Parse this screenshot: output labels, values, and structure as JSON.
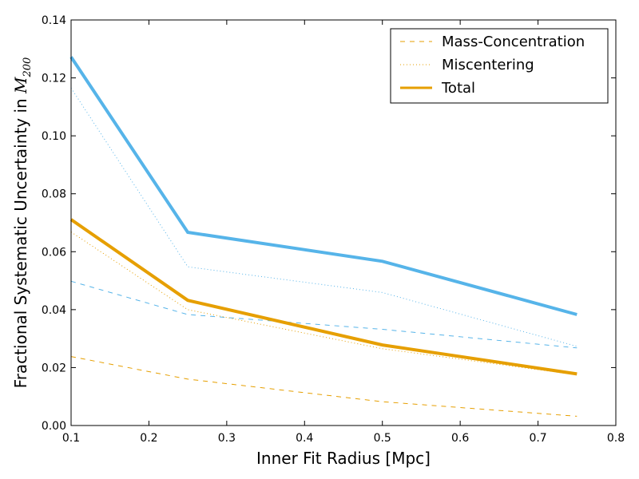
{
  "chart_data": {
    "type": "line",
    "title": "",
    "xlabel": "Inner Fit Radius [Mpc]",
    "ylabel_main": "Fractional Systematic Uncertainty in ",
    "ylabel_math": "M",
    "ylabel_sub": "200",
    "xlim": [
      0.1,
      0.8
    ],
    "ylim": [
      0.0,
      0.14
    ],
    "xticks": [
      0.1,
      0.2,
      0.3,
      0.4,
      0.5,
      0.6,
      0.7,
      0.8
    ],
    "yticks": [
      0.0,
      0.02,
      0.04,
      0.06,
      0.08,
      0.1,
      0.12,
      0.14
    ],
    "xtick_labels": [
      "0.1",
      "0.2",
      "0.3",
      "0.4",
      "0.5",
      "0.6",
      "0.7",
      "0.8"
    ],
    "ytick_labels": [
      "0.00",
      "0.02",
      "0.04",
      "0.06",
      "0.08",
      "0.10",
      "0.12",
      "0.14"
    ],
    "grid": false,
    "legend_position": "top-right",
    "legend": [
      {
        "label": "Mass-Concentration",
        "style": "dashed",
        "color": "#E69F00"
      },
      {
        "label": "Miscentering",
        "style": "dotted",
        "color": "#E69F00"
      },
      {
        "label": "Total",
        "style": "solid-thick",
        "color": "#E69F00"
      }
    ],
    "x": [
      0.1,
      0.25,
      0.5,
      0.75
    ],
    "series": [
      {
        "color": "#56B4E9",
        "style": "dashed",
        "values": [
          0.0498,
          0.0383,
          0.0332,
          0.0268
        ]
      },
      {
        "color": "#56B4E9",
        "style": "dotted",
        "values": [
          0.1165,
          0.0548,
          0.0459,
          0.0273
        ]
      },
      {
        "color": "#56B4E9",
        "style": "solid-thick",
        "values": [
          0.1272,
          0.0667,
          0.0567,
          0.0383
        ]
      },
      {
        "color": "#E69F00",
        "style": "dashed",
        "values": [
          0.0238,
          0.016,
          0.0082,
          0.0032
        ]
      },
      {
        "color": "#E69F00",
        "style": "dotted",
        "values": [
          0.0668,
          0.04,
          0.0265,
          0.0175
        ]
      },
      {
        "color": "#E69F00",
        "style": "solid-thick",
        "values": [
          0.0711,
          0.0432,
          0.0278,
          0.0178
        ]
      }
    ]
  }
}
